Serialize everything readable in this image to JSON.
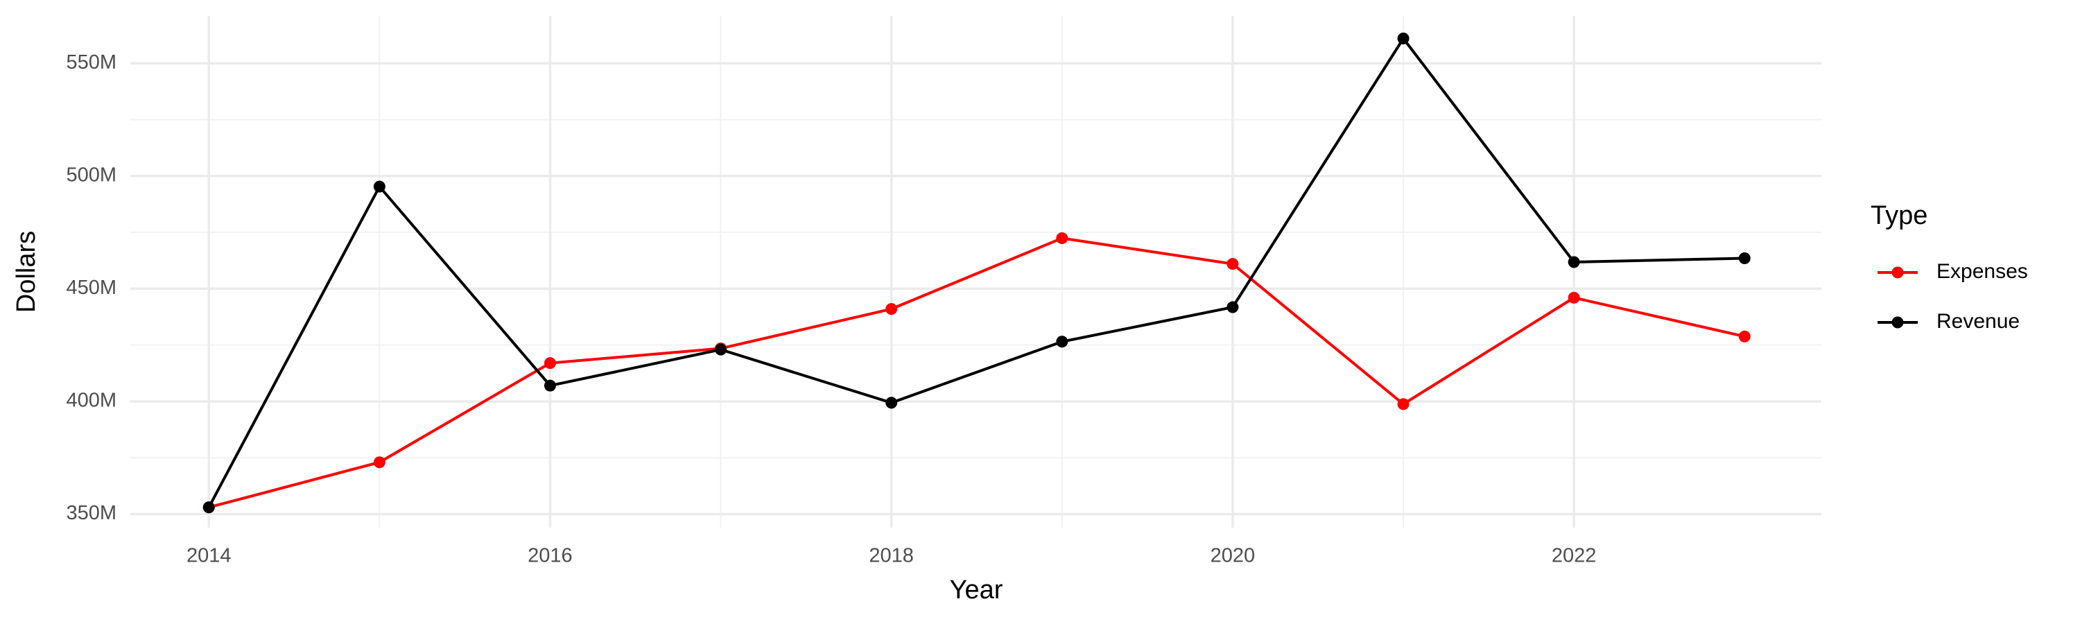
{
  "chart_data": {
    "type": "line",
    "x_label": "Year",
    "y_label": "Dollars",
    "legend_title": "Type",
    "x": [
      2014,
      2015,
      2016,
      2017,
      2018,
      2019,
      2020,
      2021,
      2022,
      2023
    ],
    "series": [
      {
        "name": "Expenses",
        "color": "#ff0000",
        "values": [
          353000000,
          373000000,
          417000000,
          423500000,
          441000000,
          472400000,
          461000000,
          398800000,
          446000000,
          428800000
        ]
      },
      {
        "name": "Revenue",
        "color": "#000000",
        "values": [
          353000000,
          495300000,
          407000000,
          423000000,
          399400000,
          426500000,
          441800000,
          561000000,
          461800000,
          463500000
        ]
      }
    ],
    "xlim": [
      2013.54,
      2023.45
    ],
    "xticks": [
      2014,
      2016,
      2018,
      2020,
      2022
    ],
    "ylim": [
      344000000,
      571000000
    ],
    "yticks": [
      {
        "value": 350000000,
        "label": "350M"
      },
      {
        "value": 400000000,
        "label": "400M"
      },
      {
        "value": 450000000,
        "label": "450M"
      },
      {
        "value": 500000000,
        "label": "500M"
      },
      {
        "value": 550000000,
        "label": "550M"
      }
    ],
    "grid": true,
    "legend": "right"
  }
}
